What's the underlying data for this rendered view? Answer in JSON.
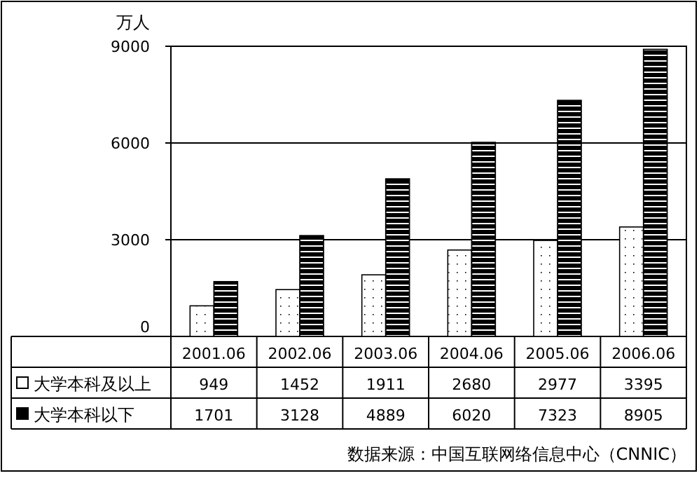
{
  "chart_data": {
    "type": "bar",
    "ylabel": "万人",
    "categories": [
      "2001.06",
      "2002.06",
      "2003.06",
      "2004.06",
      "2005.06",
      "2006.06"
    ],
    "series": [
      {
        "name": "大学本科及以上",
        "color": "#ffffff",
        "values": [
          949,
          1452,
          1911,
          2680,
          2977,
          3395
        ]
      },
      {
        "name": "大学本科以下",
        "color": "#000000",
        "values": [
          1701,
          3128,
          4889,
          6020,
          7323,
          8905
        ]
      }
    ],
    "ylim": [
      0,
      9000
    ],
    "yticks": [
      0,
      3000,
      6000,
      9000
    ],
    "grid": "y",
    "legend": "bottom",
    "data_labels": true,
    "annotations": [
      "数据来源：中国互联网络信息中心（CNNIC）"
    ]
  }
}
